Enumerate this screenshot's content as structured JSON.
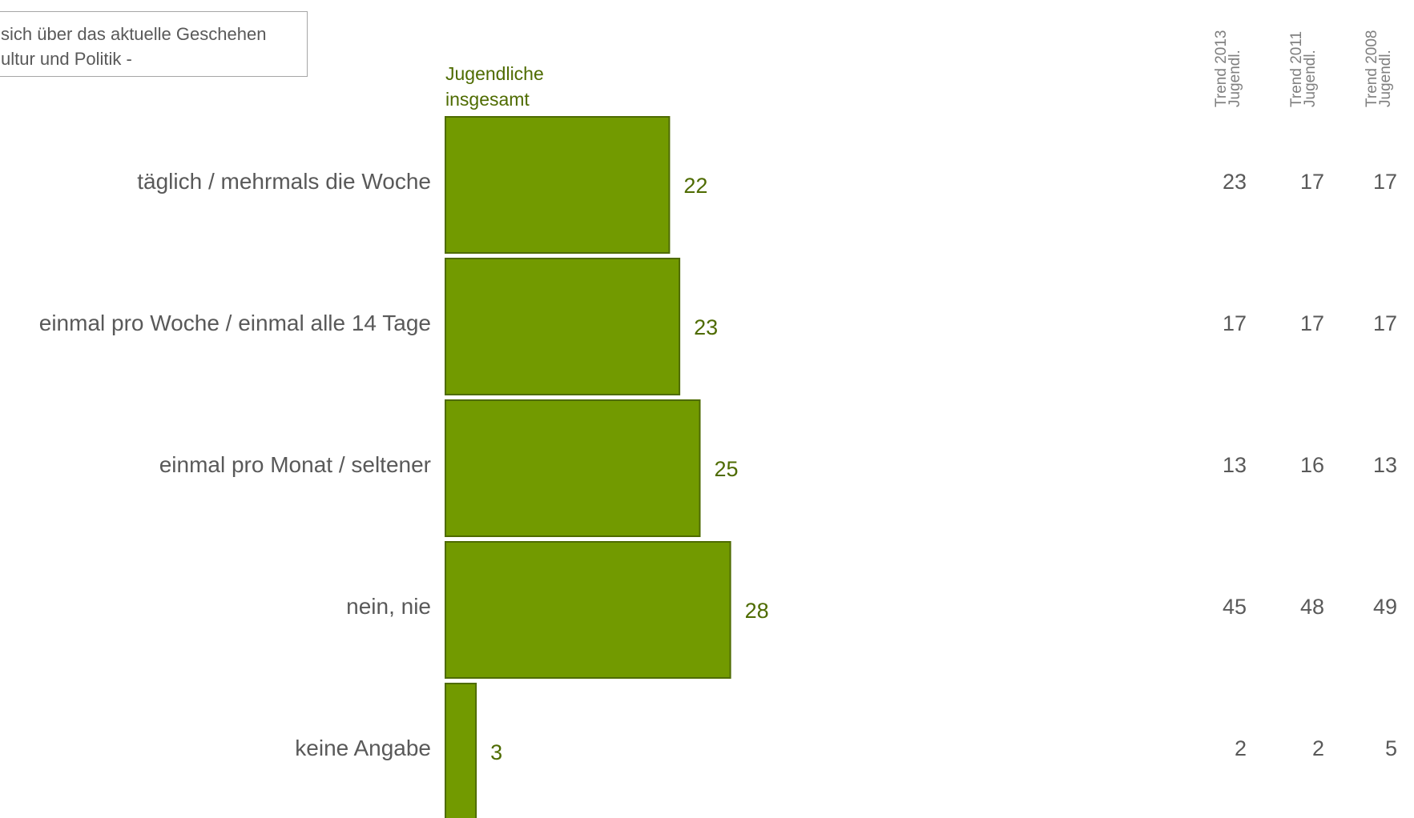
{
  "note": {
    "line1": "sich über das aktuelle Geschehen",
    "line2": "ultur und Politik -"
  },
  "colors": {
    "bar_fill": "#729a00",
    "bar_stroke": "#4e6b00",
    "value_label": "#4e6b00",
    "category_label": "#595959",
    "trend_value": "#595959",
    "trend_header": "#7f7f7f"
  },
  "chart_data": {
    "type": "bar",
    "orientation": "horizontal",
    "series": [
      {
        "name": "Jugendliche insgesamt",
        "values": [
          22,
          23,
          25,
          28,
          3
        ]
      }
    ],
    "series_label_lines": [
      "Jugendliche",
      "insgesamt"
    ],
    "categories": [
      "täglich / mehrmals die Woche",
      "einmal pro Woche / einmal alle 14 Tage",
      "einmal pro Monat / seltener",
      "nein, nie",
      "keine Angabe"
    ],
    "xlim": [
      0,
      100
    ],
    "grid": false,
    "trend_columns": [
      {
        "title_line1": "Trend 2013",
        "title_line2": "Jugendl.",
        "values": [
          23,
          17,
          13,
          45,
          2
        ]
      },
      {
        "title_line1": "Trend 2011",
        "title_line2": "Jugendl.",
        "values": [
          17,
          17,
          16,
          48,
          2
        ]
      },
      {
        "title_line1": "Trend 2008",
        "title_line2": "Jugendl.",
        "values": [
          17,
          17,
          13,
          49,
          5
        ]
      }
    ]
  }
}
